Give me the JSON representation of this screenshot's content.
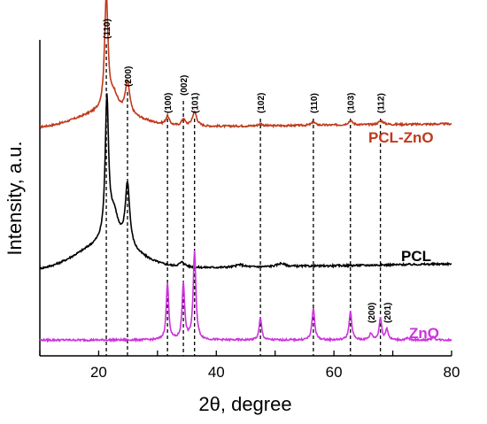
{
  "chart_data": {
    "type": "line",
    "title": "",
    "xlabel": "2θ, degree",
    "ylabel": "Intensity, a.u.",
    "xlim": [
      10,
      80
    ],
    "x_ticks": [
      "20",
      "40",
      "60",
      "80"
    ],
    "grid": false,
    "colors": {
      "pcl_zno": "#c0391b",
      "pcl": "#000000",
      "zno": "#cc33dd",
      "reference_lines": "#000000"
    },
    "series": [
      {
        "name": "PCL-ZnO",
        "color": "#c0391b",
        "baseline": 0.72,
        "slope": 0.0002,
        "shoulder": {
          "center": 21.4,
          "width": 5,
          "height": 0.05
        },
        "peaks": [
          {
            "x": 21.3,
            "h": 0.36,
            "w": 0.35
          },
          {
            "x": 22.6,
            "h": 0.05,
            "w": 0.8
          },
          {
            "x": 24.9,
            "h": 0.1,
            "w": 0.45
          },
          {
            "x": 31.7,
            "h": 0.028,
            "w": 0.35
          },
          {
            "x": 34.4,
            "h": 0.022,
            "w": 0.35
          },
          {
            "x": 36.3,
            "h": 0.045,
            "w": 0.45
          },
          {
            "x": 47.5,
            "h": 0.007,
            "w": 0.4
          },
          {
            "x": 56.5,
            "h": 0.01,
            "w": 0.4
          },
          {
            "x": 62.8,
            "h": 0.013,
            "w": 0.45
          },
          {
            "x": 68.0,
            "h": 0.012,
            "w": 0.5
          }
        ]
      },
      {
        "name": "PCL",
        "color": "#000000",
        "baseline": 0.27,
        "slope": 0.0003,
        "shoulder": {
          "center": 21.4,
          "width": 5,
          "height": 0.08
        },
        "peaks": [
          {
            "x": 21.4,
            "h": 0.44,
            "w": 0.35
          },
          {
            "x": 22.6,
            "h": 0.09,
            "w": 0.9
          },
          {
            "x": 24.9,
            "h": 0.2,
            "w": 0.45
          },
          {
            "x": 34.2,
            "h": 0.015,
            "w": 0.6
          },
          {
            "x": 44.0,
            "h": 0.008,
            "w": 0.8
          },
          {
            "x": 51.0,
            "h": 0.01,
            "w": 0.8
          }
        ]
      },
      {
        "name": "ZnO",
        "color": "#cc33dd",
        "baseline": 0.05,
        "slope": 0,
        "shoulder": null,
        "peaks": [
          {
            "x": 31.7,
            "h": 0.18,
            "w": 0.25
          },
          {
            "x": 34.4,
            "h": 0.18,
            "w": 0.25
          },
          {
            "x": 36.3,
            "h": 0.28,
            "w": 0.27
          },
          {
            "x": 47.5,
            "h": 0.07,
            "w": 0.25
          },
          {
            "x": 56.5,
            "h": 0.1,
            "w": 0.27
          },
          {
            "x": 62.8,
            "h": 0.09,
            "w": 0.27
          },
          {
            "x": 66.3,
            "h": 0.02,
            "w": 0.3
          },
          {
            "x": 67.9,
            "h": 0.07,
            "w": 0.25
          },
          {
            "x": 69.0,
            "h": 0.035,
            "w": 0.25
          },
          {
            "x": 72.5,
            "h": 0.005,
            "w": 0.3
          },
          {
            "x": 76.9,
            "h": 0.01,
            "w": 0.3
          }
        ]
      }
    ],
    "reference_lines": [
      {
        "x": 21.3,
        "label": "(110)"
      },
      {
        "x": 24.9,
        "label": "(200)"
      },
      {
        "x": 31.7,
        "label": "(100)"
      },
      {
        "x": 34.4,
        "label": "(002)"
      },
      {
        "x": 36.3,
        "label": "(101)"
      },
      {
        "x": 47.5,
        "label": "(102)"
      },
      {
        "x": 56.5,
        "label": "(110)"
      },
      {
        "x": 62.8,
        "label": "(103)"
      },
      {
        "x": 67.9,
        "label": "(112)"
      }
    ],
    "zno_extra_labels": [
      {
        "x": 66.3,
        "label": "(200)"
      },
      {
        "x": 69.0,
        "label": "(201)"
      }
    ]
  }
}
